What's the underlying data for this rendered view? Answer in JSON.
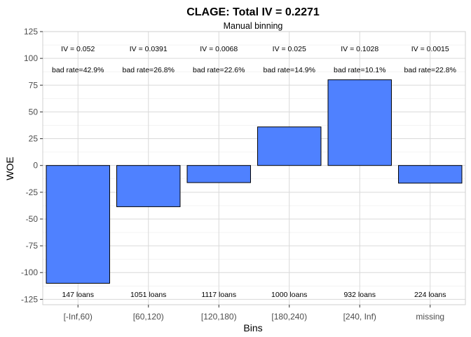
{
  "colors": {
    "bar_fill": "#4f81ff",
    "bar_stroke": "#000000"
  },
  "chart_data": {
    "type": "bar",
    "title": "CLAGE: Total IV = 0.2271",
    "subtitle": "Manual binning",
    "xlabel": "Bins",
    "ylabel": "WOE",
    "ylim": [
      -130,
      125
    ],
    "yticks": [
      -125,
      -100,
      -75,
      -50,
      -25,
      0,
      25,
      50,
      75,
      100,
      125
    ],
    "grid": true,
    "categories": [
      "[-Inf,60)",
      "[60,120)",
      "[120,180)",
      "[180,240)",
      "[240, Inf)",
      "missing"
    ],
    "values": [
      -110,
      -38.5,
      -16,
      36,
      80,
      -16.5
    ],
    "iv_labels": [
      "IV = 0.052",
      "IV = 0.0391",
      "IV = 0.0068",
      "IV = 0.025",
      "IV = 0.1028",
      "IV = 0.0015"
    ],
    "bad_rate_labels": [
      "bad rate=42.9%",
      "bad rate=26.8%",
      "bad rate=22.6%",
      "bad rate=14.9%",
      "bad rate=10.1%",
      "bad rate=22.8%"
    ],
    "count_labels": [
      "147 loans",
      "1051 loans",
      "1117 loans",
      "1000 loans",
      "932 loans",
      "224 loans"
    ]
  }
}
